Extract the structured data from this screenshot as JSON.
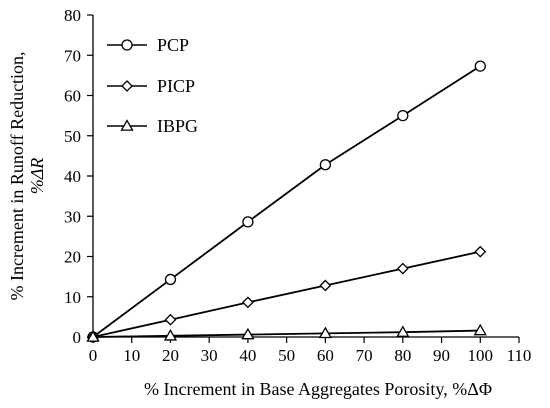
{
  "chart_data": {
    "type": "line",
    "x": [
      0,
      20,
      40,
      60,
      80,
      100
    ],
    "series": [
      {
        "name": "PCP",
        "marker": "circle",
        "values": [
          0,
          14.3,
          28.6,
          42.8,
          55.0,
          67.3
        ]
      },
      {
        "name": "PICP",
        "marker": "diamond",
        "values": [
          0,
          4.3,
          8.6,
          12.8,
          17.0,
          21.2
        ]
      },
      {
        "name": "IBPG",
        "marker": "triangle",
        "values": [
          0,
          0.3,
          0.6,
          0.9,
          1.2,
          1.6
        ]
      }
    ],
    "xlabel": "% Increment in Base Aggregates Porosity, %ΔΦ",
    "ylabel_line1": "%  Increment in Runoff Reduction,",
    "ylabel_line2": "%ΔR",
    "xlim": [
      0,
      110
    ],
    "ylim": [
      0,
      80
    ],
    "xticks": [
      0,
      10,
      20,
      30,
      40,
      50,
      60,
      70,
      80,
      90,
      100,
      110
    ],
    "yticks": [
      0,
      10,
      20,
      30,
      40,
      50,
      60,
      70,
      80
    ],
    "grid": false,
    "legend_position": "top-left",
    "line_color": "#000000"
  }
}
